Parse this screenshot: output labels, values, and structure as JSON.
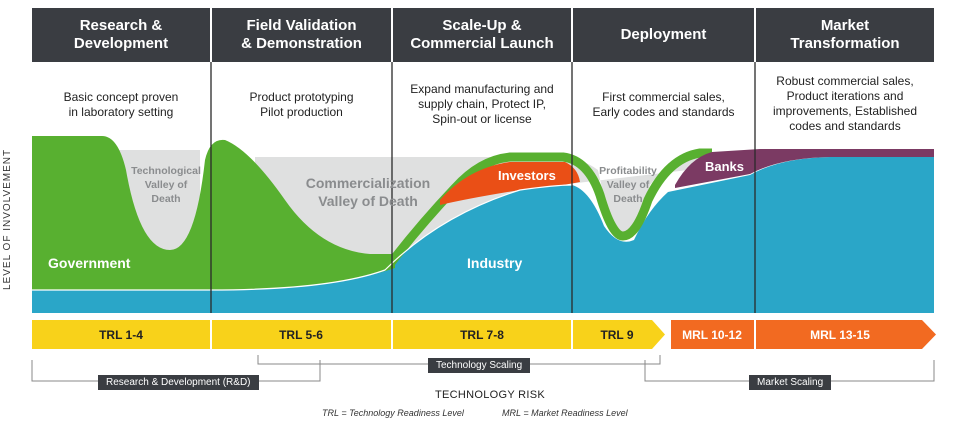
{
  "phases": [
    {
      "title": "Research &\nDevelopment",
      "description": "Basic concept proven\nin laboratory setting"
    },
    {
      "title": "Field Validation\n& Demonstration",
      "description": "Product prototyping\nPilot production"
    },
    {
      "title": "Scale-Up &\nCommercial Launch",
      "description": "Expand manufacturing and\nsupply chain, Protect IP,\nSpin-out or license"
    },
    {
      "title": "Deployment",
      "description": "First commercial sales,\nEarly codes and standards"
    },
    {
      "title": "Market\nTransformation",
      "description": "Robust commercial sales,\nProduct iterations and\nimprovements, Established\ncodes and standards"
    }
  ],
  "y_axis_label": "LEVEL OF INVOLVEMENT",
  "areas": {
    "government": "Government",
    "industry": "Industry",
    "investors": "Investors",
    "banks": "Banks",
    "tech_valley": [
      "Technological",
      "Valley of",
      "Death"
    ],
    "commercial_valley": [
      "Commercialization",
      "Valley of Death"
    ],
    "profit_valley": [
      "Profitability",
      "Valley of",
      "Death"
    ]
  },
  "readiness_levels": [
    "TRL 1-4",
    "TRL 5-6",
    "TRL 7-8",
    "TRL 9",
    "MRL 10-12",
    "MRL 13-15"
  ],
  "brackets": {
    "rnd": "Research & Development (R&D)",
    "tech_scaling": "Technology Scaling",
    "market_scaling": "Market Scaling"
  },
  "x_axis_label": "TECHNOLOGY RISK",
  "legend": {
    "trl": "TRL = Technology Readiness Level",
    "mrl": "MRL = Market Readiness Level"
  },
  "colors": {
    "header": "#3a3d42",
    "government": "#58b030",
    "industry": "#2aa6c8",
    "investors": "#ea4f16",
    "banks": "#7b3a63",
    "valley": "#dfe0e0",
    "trl": "#f8d21a",
    "mrl": "#f26a21"
  }
}
